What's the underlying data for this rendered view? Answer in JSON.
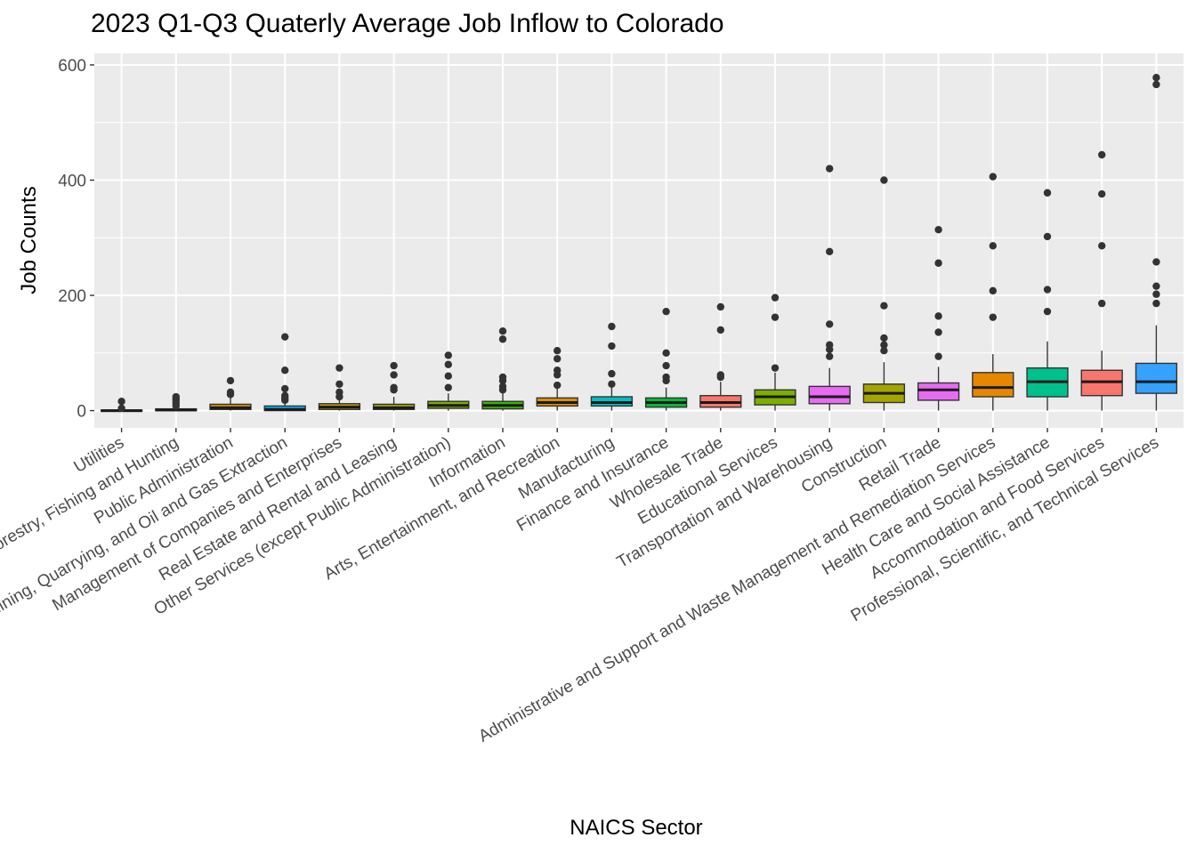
{
  "chart_data": {
    "type": "boxplot",
    "title": "2023 Q1-Q3 Quaterly Average Job Inflow to Colorado",
    "xlabel": "NAICS Sector",
    "ylabel": "Job Counts",
    "ylim": [
      -30,
      620
    ],
    "yticks": [
      0,
      200,
      400,
      600
    ],
    "grid": true,
    "legend": "none",
    "panel_background": "#EBEBEB",
    "grid_color": "#FFFFFF",
    "outlier_color": "#333333",
    "categories": [
      "Utilities",
      "Agriculture, Forestry, Fishing and Hunting",
      "Public Administration",
      "Mining, Quarrying, and Oil and Gas Extraction",
      "Management of Companies and Enterprises",
      "Real Estate and Rental and Leasing",
      "Other Services (except Public Administration)",
      "Information",
      "Arts, Entertainment, and Recreation",
      "Manufacturing",
      "Finance and Insurance",
      "Wholesale Trade",
      "Educational Services",
      "Transportation and Warehousing",
      "Construction",
      "Retail Trade",
      "Administrative and Support and Waste Management and Remediation Services",
      "Health Care and Social Assistance",
      "Accommodation and Food Services",
      "Professional, Scientific, and Technical Services"
    ],
    "series": [
      {
        "min": 0,
        "q1": 0,
        "median": 0,
        "q3": 1,
        "max": 2,
        "color": "#F8766D",
        "outliers": [
          4,
          16
        ]
      },
      {
        "min": 0,
        "q1": 0,
        "median": 1,
        "q3": 3,
        "max": 6,
        "color": "#EA8331",
        "outliers": [
          8,
          12,
          16,
          20,
          24
        ]
      },
      {
        "min": 0,
        "q1": 2,
        "median": 5,
        "q3": 11,
        "max": 22,
        "color": "#D89000",
        "outliers": [
          28,
          32,
          52
        ]
      },
      {
        "min": 0,
        "q1": 0,
        "median": 2,
        "q3": 8,
        "max": 15,
        "color": "#00B0F6",
        "outliers": [
          18,
          22,
          26,
          38,
          70,
          128
        ]
      },
      {
        "min": 0,
        "q1": 2,
        "median": 6,
        "q3": 12,
        "max": 20,
        "color": "#C09B00",
        "outliers": [
          24,
          32,
          46,
          74
        ]
      },
      {
        "min": 0,
        "q1": 2,
        "median": 5,
        "q3": 11,
        "max": 24,
        "color": "#A3A500",
        "outliers": [
          36,
          40,
          62,
          78
        ]
      },
      {
        "min": 0,
        "q1": 4,
        "median": 9,
        "q3": 16,
        "max": 30,
        "color": "#7CAE00",
        "outliers": [
          40,
          60,
          80,
          96
        ]
      },
      {
        "min": 0,
        "q1": 3,
        "median": 9,
        "q3": 16,
        "max": 30,
        "color": "#39B600",
        "outliers": [
          36,
          42,
          52,
          58,
          124,
          138
        ]
      },
      {
        "min": 0,
        "q1": 8,
        "median": 14,
        "q3": 22,
        "max": 38,
        "color": "#D89000",
        "outliers": [
          44,
          62,
          70,
          90,
          104
        ]
      },
      {
        "min": 0,
        "q1": 8,
        "median": 14,
        "q3": 24,
        "max": 40,
        "color": "#00BFC4",
        "outliers": [
          46,
          64,
          112,
          146
        ]
      },
      {
        "min": 0,
        "q1": 6,
        "median": 14,
        "q3": 22,
        "max": 40,
        "color": "#00BA38",
        "outliers": [
          52,
          58,
          78,
          100,
          172
        ]
      },
      {
        "min": 0,
        "q1": 6,
        "median": 14,
        "q3": 26,
        "max": 50,
        "color": "#F8766D",
        "outliers": [
          58,
          62,
          140,
          180
        ]
      },
      {
        "min": 0,
        "q1": 10,
        "median": 24,
        "q3": 36,
        "max": 66,
        "color": "#7CAE00",
        "outliers": [
          74,
          162,
          196
        ]
      },
      {
        "min": 0,
        "q1": 12,
        "median": 24,
        "q3": 42,
        "max": 74,
        "color": "#E76BF3",
        "outliers": [
          94,
          106,
          114,
          150,
          276,
          420
        ]
      },
      {
        "min": 0,
        "q1": 14,
        "median": 30,
        "q3": 46,
        "max": 84,
        "color": "#A3A500",
        "outliers": [
          104,
          114,
          126,
          182,
          400
        ]
      },
      {
        "min": 0,
        "q1": 18,
        "median": 36,
        "q3": 48,
        "max": 76,
        "color": "#E76BF3",
        "outliers": [
          94,
          136,
          164,
          256,
          314
        ]
      },
      {
        "min": 0,
        "q1": 24,
        "median": 40,
        "q3": 66,
        "max": 98,
        "color": "#E58700",
        "outliers": [
          162,
          208,
          286,
          406
        ]
      },
      {
        "min": 0,
        "q1": 24,
        "median": 50,
        "q3": 74,
        "max": 120,
        "color": "#00C08B",
        "outliers": [
          172,
          210,
          302,
          378
        ]
      },
      {
        "min": 0,
        "q1": 26,
        "median": 50,
        "q3": 70,
        "max": 104,
        "color": "#F8766D",
        "outliers": [
          186,
          286,
          376,
          444
        ]
      },
      {
        "min": 0,
        "q1": 30,
        "median": 50,
        "q3": 82,
        "max": 148,
        "color": "#35A2FF",
        "outliers": [
          186,
          202,
          216,
          258,
          566,
          578
        ]
      }
    ]
  }
}
